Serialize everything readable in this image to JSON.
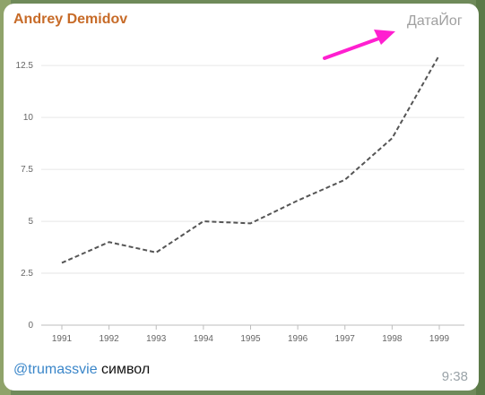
{
  "message": {
    "sender": "Andrey Demidov",
    "watermark": "ДатаЙог",
    "caption_mention": "@trumassvie",
    "caption_text": " символ",
    "time": "9:38"
  },
  "colors": {
    "sender": "#c76b28",
    "arrow": "#ff1fd0",
    "mention": "#3a86c9",
    "line": "#555555"
  },
  "chart_data": {
    "type": "line",
    "title": "",
    "xlabel": "",
    "ylabel": "",
    "x": [
      "1991",
      "1992",
      "1993",
      "1994",
      "1995",
      "1996",
      "1997",
      "1998",
      "1999"
    ],
    "series": [
      {
        "values": [
          3,
          4,
          3.5,
          5,
          4.9,
          6,
          7,
          9,
          13
        ]
      }
    ],
    "yticks": [
      "0",
      "2.5",
      "5",
      "7.5",
      "10",
      "12.5"
    ],
    "ylim": [
      0,
      13.5
    ],
    "grid": "horizontal",
    "line_style": "dashed"
  }
}
